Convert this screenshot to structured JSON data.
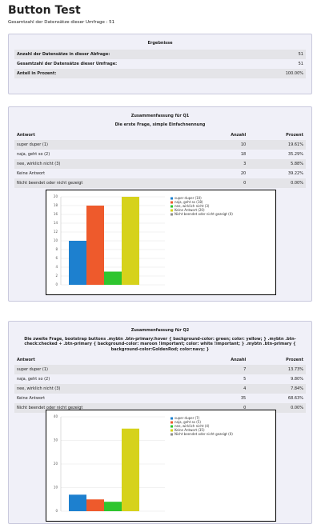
{
  "header": {
    "title": "Button Test",
    "subtitle": "Gesamtzahl der Datensätze dieser Umfrage : 51"
  },
  "results": {
    "title": "Ergebnisse",
    "rows": [
      [
        "Anzahl der Datensätze in dieser Abfrage:",
        "51"
      ],
      [
        "Gesamtzahl der Datensätze dieser Umfrage:",
        "51"
      ],
      [
        "Anteil in Prozent:",
        "100.00%"
      ]
    ]
  },
  "questions": [
    {
      "heading": "Zusammenfassung für Q1",
      "question": "Die erste Frage, simple Einfachnennung",
      "columns": [
        "Antwort",
        "Anzahl",
        "Prozent"
      ],
      "rows": [
        [
          "super duper (1)",
          10,
          "19.61%"
        ],
        [
          "naja, geht so (2)",
          18,
          "35.29%"
        ],
        [
          "nee, wirklich nicht (3)",
          3,
          "5.88%"
        ],
        [
          "Keine Antwort",
          20,
          "39.22%"
        ],
        [
          "Nicht beendet oder nicht gezeigt",
          0,
          "0.00%"
        ]
      ],
      "chart": {
        "type": "bar",
        "legend": [
          "super duper (10)",
          "naja, geht so (18)",
          "nee, wirklich nicht (3)",
          "Keine Antwort (20)",
          "Nicht beendet oder nicht gezeigt (0)"
        ],
        "colors": [
          "#1d80cf",
          "#ee5a2c",
          "#2ec52e",
          "#d6d21b",
          "#8e8e8e"
        ],
        "ylim": [
          0,
          20
        ],
        "yticks": [
          0,
          2,
          4,
          6,
          8,
          10,
          12,
          14,
          16,
          18,
          20
        ],
        "grid": true
      }
    },
    {
      "heading": "Zusammenfassung für Q2",
      "question": "Die zweite Frage, bootstrap buttons .mybtn .btn-primary:hover { background-color: green; color: yellow; } .mybtn .btn-check:checked + .btn-primary { background-color: maroon !important; color: white !important; } .mybtn .btn-primary { background-color:GoldenRod; color:navy; }",
      "columns": [
        "Antwort",
        "Anzahl",
        "Prozent"
      ],
      "rows": [
        [
          "super duper (1)",
          7,
          "13.73%"
        ],
        [
          "naja, geht so (2)",
          5,
          "9.80%"
        ],
        [
          "nee, wirklich nicht (3)",
          4,
          "7.84%"
        ],
        [
          "Keine Antwort",
          35,
          "68.63%"
        ],
        [
          "Nicht beendet oder nicht gezeigt",
          0,
          "0.00%"
        ]
      ],
      "chart": {
        "type": "bar",
        "legend": [
          "super duper (7)",
          "naja, geht so (5)",
          "nee, wirklich nicht (4)",
          "Keine Antwort (35)",
          "Nicht beendet oder nicht gezeigt (0)"
        ],
        "colors": [
          "#1d80cf",
          "#ee5a2c",
          "#2ec52e",
          "#d6d21b",
          "#8e8e8e"
        ],
        "ylim": [
          0,
          40
        ],
        "yticks": [
          0,
          10,
          20,
          30,
          40
        ],
        "grid": true
      }
    }
  ]
}
